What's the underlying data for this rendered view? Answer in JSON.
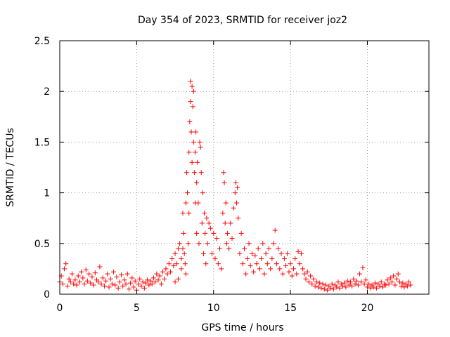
{
  "chart_data": {
    "type": "scatter",
    "title": "Day 354 of 2023, SRMTID for receiver joz2",
    "xlabel": "GPS time / hours",
    "ylabel": "SRMTID / TECUs",
    "xlim": [
      0,
      24
    ],
    "ylim": [
      0,
      2.5
    ],
    "xticks": [
      0,
      5,
      10,
      15,
      20
    ],
    "xtick_labels": [
      "0",
      "5",
      "10",
      "15",
      "20"
    ],
    "yticks": [
      0,
      0.5,
      1,
      1.5,
      2,
      2.5
    ],
    "ytick_labels": [
      "0",
      "0.5",
      "1",
      "1.5",
      "2",
      "2.5"
    ],
    "grid": true,
    "marker": "+",
    "color": "#ff0000",
    "series": [
      {
        "name": "SRMTID",
        "points": [
          [
            0.0,
            0.12
          ],
          [
            0.1,
            0.18
          ],
          [
            0.2,
            0.1
          ],
          [
            0.3,
            0.25
          ],
          [
            0.4,
            0.3
          ],
          [
            0.5,
            0.08
          ],
          [
            0.6,
            0.15
          ],
          [
            0.7,
            0.12
          ],
          [
            0.8,
            0.2
          ],
          [
            0.9,
            0.1
          ],
          [
            1.0,
            0.14
          ],
          [
            1.1,
            0.09
          ],
          [
            1.2,
            0.18
          ],
          [
            1.3,
            0.12
          ],
          [
            1.4,
            0.22
          ],
          [
            1.5,
            0.16
          ],
          [
            1.6,
            0.1
          ],
          [
            1.7,
            0.24
          ],
          [
            1.8,
            0.13
          ],
          [
            1.9,
            0.2
          ],
          [
            2.0,
            0.11
          ],
          [
            2.1,
            0.17
          ],
          [
            2.2,
            0.09
          ],
          [
            2.3,
            0.21
          ],
          [
            2.4,
            0.14
          ],
          [
            2.5,
            0.12
          ],
          [
            2.6,
            0.27
          ],
          [
            2.7,
            0.1
          ],
          [
            2.8,
            0.16
          ],
          [
            2.9,
            0.08
          ],
          [
            3.0,
            0.13
          ],
          [
            3.1,
            0.2
          ],
          [
            3.2,
            0.07
          ],
          [
            3.3,
            0.15
          ],
          [
            3.4,
            0.1
          ],
          [
            3.5,
            0.22
          ],
          [
            3.6,
            0.09
          ],
          [
            3.7,
            0.17
          ],
          [
            3.8,
            0.06
          ],
          [
            3.9,
            0.12
          ],
          [
            4.0,
            0.19
          ],
          [
            4.1,
            0.08
          ],
          [
            4.2,
            0.14
          ],
          [
            4.3,
            0.1
          ],
          [
            4.4,
            0.2
          ],
          [
            4.5,
            0.05
          ],
          [
            4.6,
            0.11
          ],
          [
            4.7,
            0.16
          ],
          [
            4.8,
            0.07
          ],
          [
            4.9,
            0.13
          ],
          [
            5.0,
            0.04
          ],
          [
            5.1,
            0.1
          ],
          [
            5.2,
            0.15
          ],
          [
            5.3,
            0.08
          ],
          [
            5.4,
            0.12
          ],
          [
            5.5,
            0.06
          ],
          [
            5.6,
            0.11
          ],
          [
            5.7,
            0.14
          ],
          [
            5.8,
            0.09
          ],
          [
            5.9,
            0.13
          ],
          [
            6.0,
            0.1
          ],
          [
            6.1,
            0.16
          ],
          [
            6.2,
            0.12
          ],
          [
            6.3,
            0.2
          ],
          [
            6.4,
            0.14
          ],
          [
            6.5,
            0.18
          ],
          [
            6.6,
            0.1
          ],
          [
            6.7,
            0.22
          ],
          [
            6.8,
            0.15
          ],
          [
            6.9,
            0.25
          ],
          [
            7.0,
            0.2
          ],
          [
            7.1,
            0.3
          ],
          [
            7.2,
            0.22
          ],
          [
            7.3,
            0.35
          ],
          [
            7.4,
            0.28
          ],
          [
            7.5,
            0.4
          ],
          [
            7.6,
            0.3
          ],
          [
            7.7,
            0.45
          ],
          [
            7.8,
            0.5
          ],
          [
            7.9,
            0.35
          ],
          [
            7.7,
            0.15
          ],
          [
            7.5,
            0.12
          ],
          [
            7.9,
            0.25
          ],
          [
            8.0,
            0.45
          ],
          [
            8.0,
            0.8
          ],
          [
            8.05,
            0.6
          ],
          [
            8.1,
            0.4
          ],
          [
            8.15,
            0.3
          ],
          [
            8.2,
            0.9
          ],
          [
            8.2,
            0.2
          ],
          [
            8.25,
            1.2
          ],
          [
            8.3,
            1.0
          ],
          [
            8.35,
            0.5
          ],
          [
            8.4,
            1.4
          ],
          [
            8.4,
            0.8
          ],
          [
            8.45,
            1.7
          ],
          [
            8.5,
            1.9
          ],
          [
            8.5,
            2.1
          ],
          [
            8.55,
            1.6
          ],
          [
            8.6,
            2.05
          ],
          [
            8.6,
            1.3
          ],
          [
            8.65,
            1.85
          ],
          [
            8.7,
            1.5
          ],
          [
            8.7,
            2.0
          ],
          [
            8.75,
            1.2
          ],
          [
            8.8,
            1.4
          ],
          [
            8.8,
            0.9
          ],
          [
            8.85,
            1.6
          ],
          [
            8.9,
            1.1
          ],
          [
            8.9,
            0.6
          ],
          [
            8.95,
            1.3
          ],
          [
            9.0,
            0.9
          ],
          [
            9.05,
            0.5
          ],
          [
            9.1,
            1.5
          ],
          [
            9.15,
            1.45
          ],
          [
            9.2,
            1.2
          ],
          [
            9.25,
            0.7
          ],
          [
            9.3,
            1.0
          ],
          [
            9.35,
            0.4
          ],
          [
            9.4,
            0.8
          ],
          [
            9.45,
            0.6
          ],
          [
            9.5,
            0.3
          ],
          [
            9.55,
            0.75
          ],
          [
            9.6,
            0.5
          ],
          [
            9.7,
            0.7
          ],
          [
            9.8,
            0.65
          ],
          [
            9.9,
            0.4
          ],
          [
            10.0,
            0.6
          ],
          [
            10.1,
            0.35
          ],
          [
            10.2,
            0.55
          ],
          [
            10.3,
            0.3
          ],
          [
            10.4,
            0.45
          ],
          [
            10.5,
            0.25
          ],
          [
            10.6,
            0.8
          ],
          [
            10.65,
            1.2
          ],
          [
            10.7,
            1.1
          ],
          [
            10.75,
            0.7
          ],
          [
            10.8,
            0.9
          ],
          [
            10.85,
            0.5
          ],
          [
            10.9,
            0.6
          ],
          [
            11.0,
            0.45
          ],
          [
            11.1,
            0.7
          ],
          [
            11.2,
            0.55
          ],
          [
            11.3,
            0.85
          ],
          [
            11.4,
            1.0
          ],
          [
            11.45,
            1.1
          ],
          [
            11.5,
            0.9
          ],
          [
            11.55,
            1.05
          ],
          [
            11.6,
            0.75
          ],
          [
            11.7,
            0.4
          ],
          [
            11.8,
            0.6
          ],
          [
            11.9,
            0.3
          ],
          [
            12.0,
            0.45
          ],
          [
            12.1,
            0.2
          ],
          [
            12.2,
            0.35
          ],
          [
            12.3,
            0.5
          ],
          [
            12.4,
            0.28
          ],
          [
            12.5,
            0.4
          ],
          [
            12.6,
            0.22
          ],
          [
            12.7,
            0.38
          ],
          [
            12.8,
            0.3
          ],
          [
            12.9,
            0.45
          ],
          [
            13.0,
            0.25
          ],
          [
            13.1,
            0.35
          ],
          [
            13.2,
            0.5
          ],
          [
            13.3,
            0.2
          ],
          [
            13.4,
            0.4
          ],
          [
            13.5,
            0.3
          ],
          [
            13.6,
            0.45
          ],
          [
            13.7,
            0.25
          ],
          [
            13.8,
            0.35
          ],
          [
            13.9,
            0.5
          ],
          [
            14.0,
            0.63
          ],
          [
            14.1,
            0.3
          ],
          [
            14.2,
            0.45
          ],
          [
            14.3,
            0.25
          ],
          [
            14.4,
            0.4
          ],
          [
            14.5,
            0.2
          ],
          [
            14.6,
            0.35
          ],
          [
            14.7,
            0.28
          ],
          [
            14.8,
            0.4
          ],
          [
            14.9,
            0.22
          ],
          [
            15.0,
            0.3
          ],
          [
            15.1,
            0.18
          ],
          [
            15.2,
            0.25
          ],
          [
            15.3,
            0.35
          ],
          [
            15.4,
            0.2
          ],
          [
            15.5,
            0.42
          ],
          [
            15.6,
            0.3
          ],
          [
            15.7,
            0.4
          ],
          [
            15.8,
            0.25
          ],
          [
            15.9,
            0.2
          ],
          [
            16.0,
            0.15
          ],
          [
            16.1,
            0.22
          ],
          [
            16.2,
            0.12
          ],
          [
            16.3,
            0.18
          ],
          [
            16.4,
            0.1
          ],
          [
            16.5,
            0.15
          ],
          [
            16.6,
            0.08
          ],
          [
            16.7,
            0.12
          ],
          [
            16.8,
            0.07
          ],
          [
            16.9,
            0.11
          ],
          [
            17.0,
            0.06
          ],
          [
            17.1,
            0.1
          ],
          [
            17.2,
            0.05
          ],
          [
            17.3,
            0.09
          ],
          [
            17.4,
            0.04
          ],
          [
            17.5,
            0.08
          ],
          [
            17.6,
            0.06
          ],
          [
            17.7,
            0.1
          ],
          [
            17.8,
            0.05
          ],
          [
            17.9,
            0.09
          ],
          [
            18.0,
            0.07
          ],
          [
            18.1,
            0.12
          ],
          [
            18.2,
            0.06
          ],
          [
            18.3,
            0.1
          ],
          [
            18.4,
            0.08
          ],
          [
            18.5,
            0.11
          ],
          [
            18.6,
            0.07
          ],
          [
            18.7,
            0.13
          ],
          [
            18.8,
            0.09
          ],
          [
            18.9,
            0.12
          ],
          [
            19.0,
            0.08
          ],
          [
            19.1,
            0.15
          ],
          [
            19.2,
            0.1
          ],
          [
            19.3,
            0.13
          ],
          [
            19.4,
            0.09
          ],
          [
            19.5,
            0.2
          ],
          [
            19.6,
            0.12
          ],
          [
            19.7,
            0.26
          ],
          [
            19.8,
            0.1
          ],
          [
            19.9,
            0.14
          ],
          [
            20.0,
            0.07
          ],
          [
            20.1,
            0.1
          ],
          [
            20.2,
            0.06
          ],
          [
            20.3,
            0.09
          ],
          [
            20.4,
            0.07
          ],
          [
            20.5,
            0.11
          ],
          [
            20.6,
            0.06
          ],
          [
            20.7,
            0.1
          ],
          [
            20.8,
            0.08
          ],
          [
            20.9,
            0.12
          ],
          [
            21.0,
            0.07
          ],
          [
            21.1,
            0.1
          ],
          [
            21.2,
            0.09
          ],
          [
            21.3,
            0.14
          ],
          [
            21.4,
            0.1
          ],
          [
            21.5,
            0.16
          ],
          [
            21.6,
            0.12
          ],
          [
            21.7,
            0.18
          ],
          [
            21.8,
            0.09
          ],
          [
            21.9,
            0.15
          ],
          [
            22.0,
            0.2
          ],
          [
            22.1,
            0.12
          ],
          [
            22.2,
            0.08
          ],
          [
            22.3,
            0.11
          ],
          [
            22.4,
            0.07
          ],
          [
            22.5,
            0.1
          ],
          [
            22.6,
            0.08
          ],
          [
            22.7,
            0.12
          ],
          [
            22.8,
            0.09
          ]
        ]
      }
    ]
  }
}
